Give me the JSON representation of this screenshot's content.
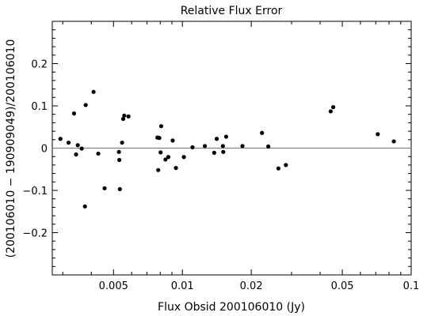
{
  "chart_data": {
    "type": "scatter",
    "title": "Relative Flux Error",
    "xlabel": "Flux Obsid 200106010 (Jy)",
    "ylabel": "(200106010 − 190909049)/200106010",
    "x_scale": "log",
    "xlim": [
      0.0027,
      0.1
    ],
    "ylim": [
      -0.3,
      0.3
    ],
    "x_ticks": [
      0.005,
      0.01,
      0.02,
      0.05,
      0.1
    ],
    "x_tick_labels": [
      "0.005",
      "0.01",
      "0.02",
      "0.05",
      "0.1"
    ],
    "y_ticks": [
      -0.2,
      -0.1,
      0,
      0.1,
      0.2
    ],
    "y_tick_labels": [
      "−0.2",
      "−0.1",
      "0",
      "0.1",
      "0.2"
    ],
    "zero_line": 0,
    "grid": false,
    "colors": {
      "points": "#000000",
      "zero_line": "#808080",
      "axes": "#000000"
    },
    "points": [
      {
        "x": 0.00293,
        "y": 0.022
      },
      {
        "x": 0.00318,
        "y": 0.013
      },
      {
        "x": 0.00336,
        "y": 0.082
      },
      {
        "x": 0.00343,
        "y": -0.015
      },
      {
        "x": 0.00349,
        "y": 0.007
      },
      {
        "x": 0.00363,
        "y": -0.001
      },
      {
        "x": 0.00378,
        "y": 0.102
      },
      {
        "x": 0.00375,
        "y": -0.138
      },
      {
        "x": 0.00409,
        "y": 0.133
      },
      {
        "x": 0.00429,
        "y": -0.013
      },
      {
        "x": 0.00457,
        "y": -0.095
      },
      {
        "x": 0.00528,
        "y": -0.009
      },
      {
        "x": 0.0053,
        "y": -0.028
      },
      {
        "x": 0.00533,
        "y": -0.097
      },
      {
        "x": 0.00545,
        "y": 0.013
      },
      {
        "x": 0.00551,
        "y": 0.069
      },
      {
        "x": 0.00557,
        "y": 0.077
      },
      {
        "x": 0.00581,
        "y": 0.075
      },
      {
        "x": 0.00778,
        "y": 0.025
      },
      {
        "x": 0.00784,
        "y": -0.052
      },
      {
        "x": 0.00793,
        "y": 0.024
      },
      {
        "x": 0.00803,
        "y": -0.01
      },
      {
        "x": 0.00808,
        "y": 0.052
      },
      {
        "x": 0.00843,
        "y": -0.027
      },
      {
        "x": 0.00868,
        "y": -0.021
      },
      {
        "x": 0.00907,
        "y": 0.018
      },
      {
        "x": 0.00937,
        "y": -0.047
      },
      {
        "x": 0.01015,
        "y": -0.021
      },
      {
        "x": 0.01107,
        "y": 0.002
      },
      {
        "x": 0.01254,
        "y": 0.005
      },
      {
        "x": 0.01377,
        "y": -0.011
      },
      {
        "x": 0.01413,
        "y": 0.022
      },
      {
        "x": 0.01503,
        "y": 0.005
      },
      {
        "x": 0.01509,
        "y": -0.009
      },
      {
        "x": 0.01553,
        "y": 0.027
      },
      {
        "x": 0.0183,
        "y": 0.005
      },
      {
        "x": 0.02228,
        "y": 0.036
      },
      {
        "x": 0.02374,
        "y": 0.004
      },
      {
        "x": 0.02628,
        "y": -0.048
      },
      {
        "x": 0.02834,
        "y": -0.04
      },
      {
        "x": 0.04447,
        "y": 0.087
      },
      {
        "x": 0.04562,
        "y": 0.097
      },
      {
        "x": 0.07142,
        "y": 0.033
      },
      {
        "x": 0.08396,
        "y": 0.016
      }
    ]
  }
}
